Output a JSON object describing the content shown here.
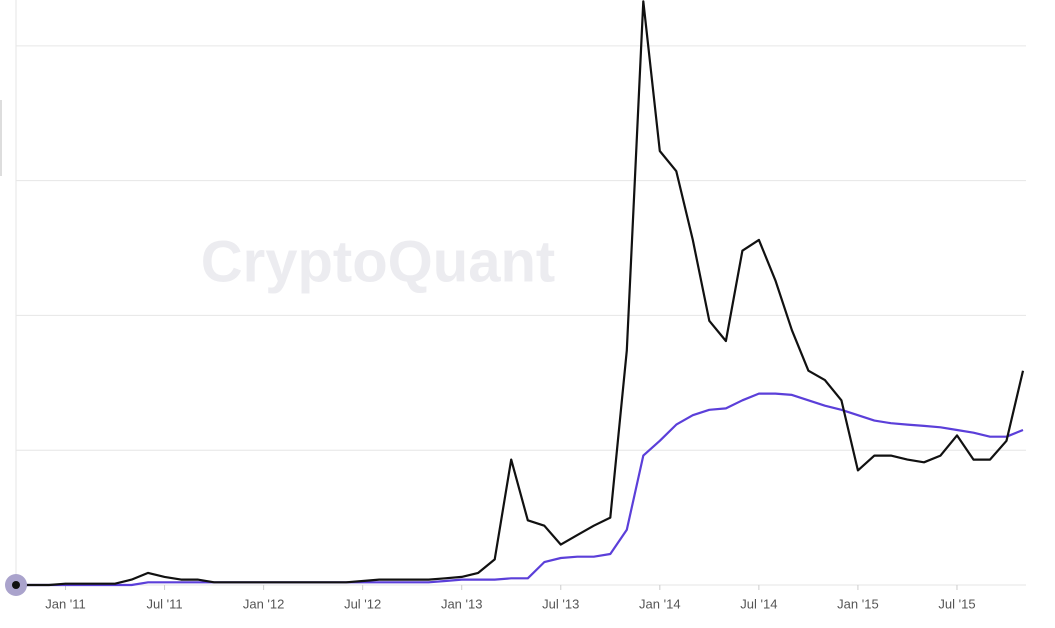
{
  "chart_data": {
    "type": "line",
    "watermark": "CryptoQuant",
    "x": [
      "2010-10",
      "2010-11",
      "2010-12",
      "2011-01",
      "2011-02",
      "2011-03",
      "2011-04",
      "2011-05",
      "2011-06",
      "2011-07",
      "2011-08",
      "2011-09",
      "2011-10",
      "2011-11",
      "2011-12",
      "2012-01",
      "2012-02",
      "2012-03",
      "2012-04",
      "2012-05",
      "2012-06",
      "2012-07",
      "2012-08",
      "2012-09",
      "2012-10",
      "2012-11",
      "2012-12",
      "2013-01",
      "2013-02",
      "2013-03",
      "2013-04",
      "2013-05",
      "2013-06",
      "2013-07",
      "2013-08",
      "2013-09",
      "2013-10",
      "2013-11",
      "2013-12",
      "2014-01",
      "2014-02",
      "2014-03",
      "2014-04",
      "2014-05",
      "2014-06",
      "2014-07",
      "2014-08",
      "2014-09",
      "2014-10",
      "2014-11",
      "2014-12",
      "2015-01",
      "2015-02",
      "2015-03",
      "2015-04",
      "2015-05",
      "2015-06",
      "2015-07",
      "2015-08",
      "2015-09",
      "2015-10",
      "2015-11"
    ],
    "series": [
      {
        "color": "#5b3fd9",
        "values": [
          0,
          0,
          0,
          0,
          0,
          0,
          0,
          0,
          0.02,
          0.02,
          0.02,
          0.02,
          0.02,
          0.02,
          0.02,
          0.02,
          0.02,
          0.02,
          0.02,
          0.02,
          0.02,
          0.02,
          0.02,
          0.02,
          0.02,
          0.02,
          0.03,
          0.04,
          0.04,
          0.04,
          0.05,
          0.05,
          0.17,
          0.2,
          0.21,
          0.21,
          0.23,
          0.41,
          0.96,
          1.07,
          1.19,
          1.26,
          1.3,
          1.31,
          1.37,
          1.42,
          1.42,
          1.41,
          1.37,
          1.33,
          1.3,
          1.26,
          1.22,
          1.2,
          1.19,
          1.18,
          1.17,
          1.15,
          1.13,
          1.1,
          1.1,
          1.15
        ]
      },
      {
        "color": "#111111",
        "values": [
          0,
          0,
          0,
          0.01,
          0.01,
          0.01,
          0.01,
          0.04,
          0.09,
          0.06,
          0.04,
          0.04,
          0.02,
          0.02,
          0.02,
          0.02,
          0.02,
          0.02,
          0.02,
          0.02,
          0.02,
          0.03,
          0.04,
          0.04,
          0.04,
          0.04,
          0.05,
          0.06,
          0.09,
          0.19,
          0.93,
          0.48,
          0.44,
          0.3,
          0.37,
          0.44,
          0.5,
          1.74,
          4.33,
          3.22,
          3.07,
          2.56,
          1.96,
          1.81,
          2.48,
          2.56,
          2.26,
          1.89,
          1.59,
          1.52,
          1.37,
          0.85,
          0.96,
          0.96,
          0.93,
          0.91,
          0.96,
          1.11,
          0.93,
          0.93,
          1.07,
          1.59
        ]
      }
    ],
    "xlim": [
      "2010-10",
      "2015-11"
    ],
    "xticks": [
      {
        "value": "2011-01",
        "label": "Jan '11"
      },
      {
        "value": "2011-07",
        "label": "Jul '11"
      },
      {
        "value": "2012-01",
        "label": "Jan '12"
      },
      {
        "value": "2012-07",
        "label": "Jul '12"
      },
      {
        "value": "2013-01",
        "label": "Jan '13"
      },
      {
        "value": "2013-07",
        "label": "Jul '13"
      },
      {
        "value": "2014-01",
        "label": "Jan '14"
      },
      {
        "value": "2014-07",
        "label": "Jul '14"
      },
      {
        "value": "2015-01",
        "label": "Jan '15"
      },
      {
        "value": "2015-07",
        "label": "Jul '15"
      }
    ],
    "ylim": [
      0,
      4.34
    ],
    "gridlines": [
      0,
      1,
      2,
      3,
      4
    ],
    "grid": true
  }
}
